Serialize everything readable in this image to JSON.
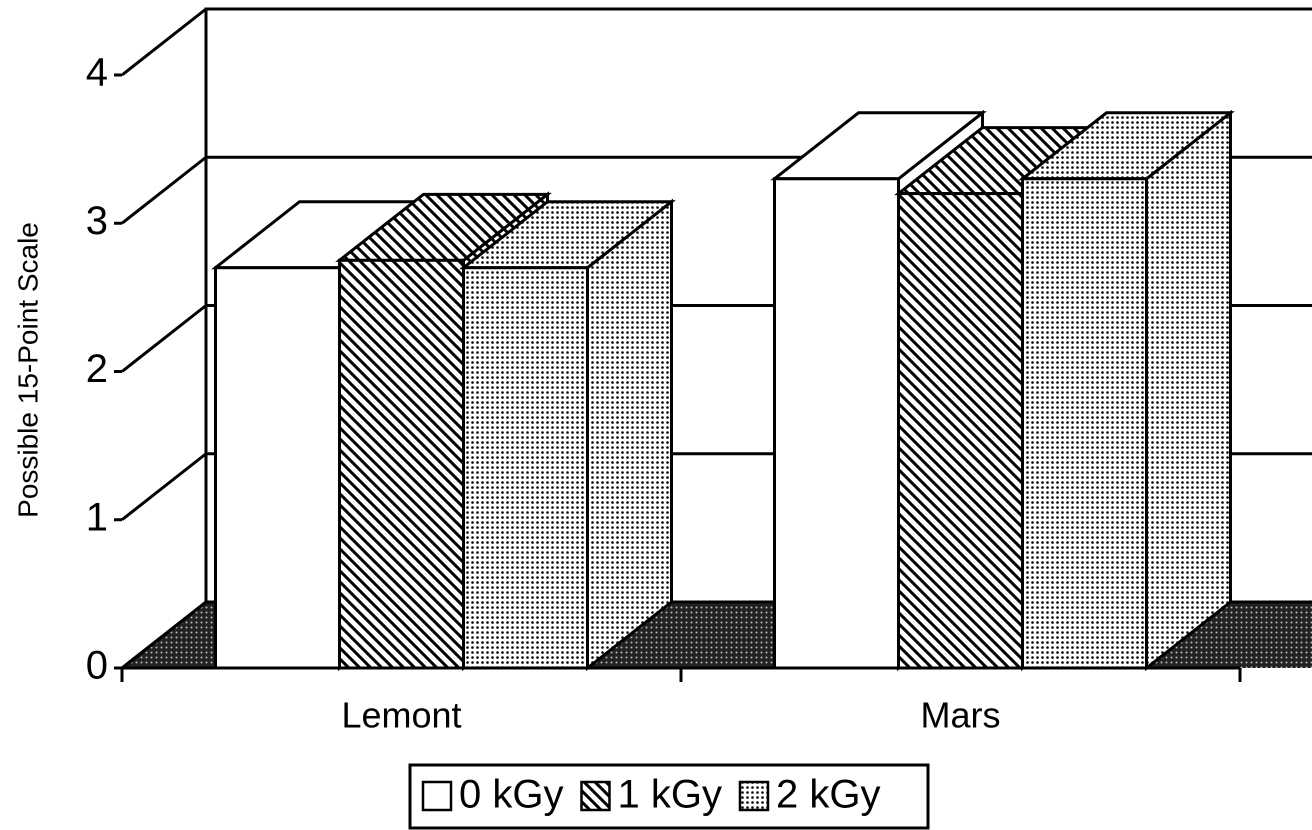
{
  "chart_data": {
    "type": "bar3d",
    "y_label": "Possible 15-Point Scale",
    "categories": [
      "Lemont",
      "Mars"
    ],
    "series": [
      {
        "name": "0 kGy",
        "pattern": "none",
        "values": [
          2.7,
          3.3
        ]
      },
      {
        "name": "1 kGy",
        "pattern": "hatch",
        "values": [
          2.75,
          3.2
        ]
      },
      {
        "name": "2 kGy",
        "pattern": "dots",
        "values": [
          2.7,
          3.3
        ]
      }
    ],
    "ylim": [
      0,
      4
    ],
    "yticks": [
      0,
      1,
      2,
      3,
      4
    ],
    "grid": true,
    "legend": "bottom"
  }
}
